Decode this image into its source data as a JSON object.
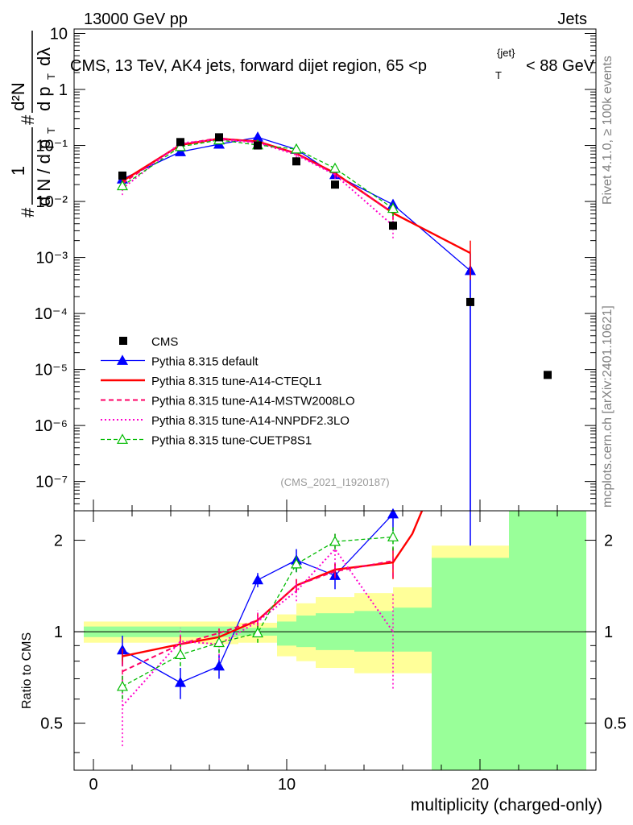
{
  "header": {
    "energy": "13000 GeV pp",
    "category": "Jets",
    "title_main": "CMS, 13 TeV, AK4 jets, forward dijet region, 65 <p",
    "title_sub": "T",
    "title_sup": "{jet}",
    "title_end": "< 88 GeV",
    "analysis_id": "(CMS_2021_I1920187)",
    "side_rivet": "Rivet 4.1.0, ≥ 100k events",
    "side_mcplots": "mcplots.cern.ch [arXiv:2401.10621]"
  },
  "ylabel_top": {
    "prefix": "#",
    "one": "1",
    "dn": "d N / d p",
    "t": "T",
    "hash": "#",
    "num": "d²N",
    "den": "d p",
    "dlam": "dλ"
  },
  "colors": {
    "cms": "#000000",
    "default": "#0000ff",
    "cteql1": "#ff0000",
    "mstw": "#ff0066",
    "nnpdf": "#ff00cc",
    "cuetp8s1": "#00bb00",
    "band_yellow": "#ffff99",
    "band_green": "#99ff99"
  },
  "chart_data": [
    {
      "type": "line",
      "scale": "log",
      "xlim": [
        -1,
        26
      ],
      "ylim": [
        3e-08,
        12
      ],
      "ylabel": "",
      "y_tick_labels": [
        "10",
        "1",
        "10⁻¹",
        "10⁻²",
        "10⁻³",
        "10⁻⁴",
        "10⁻⁵",
        "10⁻⁶",
        "10⁻⁷"
      ],
      "y_tick_values": [
        10,
        1,
        0.1,
        0.01,
        0.001,
        0.0001,
        1e-05,
        1e-06,
        1e-07
      ],
      "x_centers": [
        1.5,
        4.5,
        6.5,
        8.5,
        10.5,
        12.5,
        15.5,
        19.5,
        23.5
      ],
      "cms": {
        "name": "CMS",
        "values": [
          0.029,
          0.115,
          0.14,
          0.1,
          0.052,
          0.02,
          0.0037,
          0.00016,
          8e-06
        ]
      },
      "series": [
        {
          "name": "Pythia 8.315 default",
          "key": "default",
          "x": [
            1.5,
            4.5,
            6.5,
            8.5,
            10.5,
            12.5,
            15.5,
            19.5
          ],
          "values": [
            0.025,
            0.077,
            0.105,
            0.14,
            0.085,
            0.03,
            0.0088,
            0.00058
          ],
          "err": [
            0.003,
            0.008,
            0.008,
            0.01,
            0.007,
            0.004,
            0.002,
            0.0006
          ],
          "extra_bin": {
            "x": 19.5,
            "to": 3e-08
          }
        },
        {
          "name": "Pythia 8.315 tune-A14-CTEQL1",
          "key": "cteql1",
          "x": [
            1.5,
            4.5,
            6.5,
            8.5,
            10.5,
            12.5,
            15.5,
            19.5
          ],
          "values": [
            0.023,
            0.102,
            0.132,
            0.118,
            0.072,
            0.032,
            0.0062,
            0.0012
          ],
          "err": [
            0.002,
            0.008,
            0.008,
            0.008,
            0.006,
            0.004,
            0.0015,
            0.0008
          ]
        },
        {
          "name": "Pythia 8.315 tune-A14-MSTW2008LO",
          "key": "mstw",
          "x": [
            1.5,
            4.5,
            6.5,
            8.5,
            10.5,
            12.5,
            15.5
          ],
          "values": [
            0.021,
            0.105,
            0.135,
            0.115,
            0.071,
            0.031,
            0.0063
          ],
          "err": [
            0.002,
            0.008,
            0.008,
            0.008,
            0.006,
            0.004,
            0.0015
          ]
        },
        {
          "name": "Pythia 8.315 tune-A14-NNPDF2.3LO",
          "key": "nnpdf",
          "x": [
            1.5,
            4.5,
            6.5,
            8.5,
            10.5,
            12.5,
            15.5
          ],
          "values": [
            0.017,
            0.11,
            0.128,
            0.112,
            0.068,
            0.03,
            0.0037
          ],
          "err": [
            0.004,
            0.01,
            0.01,
            0.01,
            0.008,
            0.005,
            0.0015
          ]
        },
        {
          "name": "Pythia 8.315 tune-CUETP8S1",
          "key": "cuetp8s1",
          "x": [
            1.5,
            4.5,
            6.5,
            8.5,
            10.5,
            12.5,
            15.5
          ],
          "values": [
            0.019,
            0.095,
            0.125,
            0.102,
            0.086,
            0.039,
            0.0075
          ],
          "err": [
            0.002,
            0.008,
            0.008,
            0.008,
            0.007,
            0.005,
            0.002
          ]
        }
      ],
      "legend": {
        "position": "center-left"
      }
    },
    {
      "type": "line",
      "xlabel": "multiplicity (charged-only)",
      "ylabel": "Ratio to CMS",
      "xlim": [
        -1,
        26
      ],
      "ylim": [
        0.35,
        2.5
      ],
      "x_ticks": [
        0,
        10,
        20
      ],
      "y_ticks": [
        0.5,
        1,
        2
      ],
      "reference": 1,
      "bands": {
        "edges": [
          -0.5,
          5.5,
          7.5,
          9.5,
          10.5,
          11.5,
          13.5,
          15.5,
          17.5,
          21.5,
          25.5
        ],
        "yellow": [
          [
            0.92,
            1.08
          ],
          [
            0.91,
            1.08
          ],
          [
            0.92,
            1.07
          ],
          [
            0.83,
            1.14
          ],
          [
            0.8,
            1.24
          ],
          [
            0.76,
            1.3
          ],
          [
            0.73,
            1.34
          ],
          [
            0.73,
            1.4
          ],
          [
            0.35,
            1.92
          ],
          [
            0.35,
            2.5
          ]
        ],
        "green": [
          [
            0.96,
            1.04
          ],
          [
            0.96,
            1.04
          ],
          [
            0.97,
            1.03
          ],
          [
            0.9,
            1.08
          ],
          [
            0.89,
            1.13
          ],
          [
            0.87,
            1.15
          ],
          [
            0.86,
            1.17
          ],
          [
            0.86,
            1.2
          ],
          [
            0.35,
            1.75
          ],
          [
            0.35,
            2.5
          ]
        ]
      },
      "series": [
        {
          "name": "Pythia 8.315 default",
          "key": "default",
          "x": [
            1.5,
            4.5,
            6.5,
            8.5,
            10.5,
            12.5,
            15.5
          ],
          "values": [
            0.87,
            0.68,
            0.77,
            1.48,
            1.72,
            1.53,
            2.44
          ],
          "err": [
            0.1,
            0.08,
            0.07,
            0.08,
            0.15,
            0.15,
            0.3
          ]
        },
        {
          "name": "Pythia 8.315 tune-A14-CTEQL1",
          "key": "cteql1",
          "x": [
            1.5,
            4.5,
            6.5,
            8.5,
            10.5,
            12.5,
            15.5,
            16.5,
            17.0
          ],
          "values": [
            0.83,
            0.91,
            0.96,
            1.09,
            1.42,
            1.6,
            1.69,
            2.1,
            2.5
          ],
          "err": [
            0.05,
            0.06,
            0.06,
            0.06,
            0.07,
            0.08,
            0.2,
            0,
            0
          ]
        },
        {
          "name": "Pythia 8.315 tune-A14-MSTW2008LO",
          "key": "mstw",
          "x": [
            1.5,
            4.5,
            6.5,
            8.5,
            10.5,
            12.5,
            15.5
          ],
          "values": [
            0.74,
            0.91,
            0.99,
            1.09,
            1.42,
            1.58,
            1.71
          ],
          "err": [
            0.06,
            0.06,
            0.06,
            0.06,
            0.07,
            0.08,
            0.2
          ]
        },
        {
          "name": "Pythia 8.315 tune-A14-NNPDF2.3LO",
          "key": "nnpdf",
          "x": [
            1.5,
            4.5,
            6.5,
            8.5,
            10.5,
            12.5,
            15.5
          ],
          "values": [
            0.57,
            0.93,
            0.91,
            1.08,
            1.36,
            1.87,
            1.0
          ],
          "err": [
            0.15,
            0.1,
            0.1,
            0.1,
            0.1,
            0.25,
            0.35
          ]
        },
        {
          "name": "Pythia 8.315 tune-CUETP8S1",
          "key": "cuetp8s1",
          "x": [
            1.5,
            4.5,
            6.5,
            8.5,
            10.5,
            12.5,
            15.5
          ],
          "values": [
            0.66,
            0.84,
            0.92,
            0.99,
            1.67,
            1.98,
            2.05
          ],
          "err": [
            0.06,
            0.07,
            0.07,
            0.07,
            0.1,
            0.12,
            0.2
          ]
        }
      ]
    }
  ]
}
